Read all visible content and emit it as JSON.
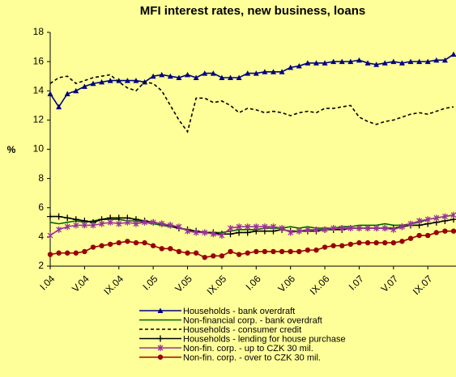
{
  "chart_data": {
    "type": "line",
    "title": "MFI interest rates, new business, loans",
    "y_label": "%",
    "categories": [
      "I.04",
      null,
      null,
      null,
      "V.04",
      null,
      null,
      null,
      "IX.04",
      null,
      null,
      null,
      "I.05",
      null,
      null,
      null,
      "V.05",
      null,
      null,
      null,
      "IX.05",
      null,
      null,
      null,
      "I.06",
      null,
      null,
      null,
      "V.06",
      null,
      null,
      null,
      "IX.06",
      null,
      null,
      null,
      "I.07",
      null,
      null,
      null,
      "V.07",
      null,
      null,
      null,
      "IX.07",
      null,
      null,
      null
    ],
    "ylim": [
      2,
      18
    ],
    "yticks": [
      2,
      4,
      6,
      8,
      10,
      12,
      14,
      16,
      18
    ],
    "grid": false,
    "series": [
      {
        "name": "Households - bank overdraft",
        "color": "#000080",
        "marker": "triangle",
        "dash": false,
        "values": [
          13.8,
          12.9,
          13.8,
          14.0,
          14.3,
          14.5,
          14.6,
          14.7,
          14.7,
          14.7,
          14.7,
          14.6,
          15.0,
          15.1,
          15.0,
          14.9,
          15.1,
          14.9,
          15.2,
          15.2,
          14.9,
          14.9,
          14.9,
          15.2,
          15.2,
          15.3,
          15.3,
          15.3,
          15.6,
          15.7,
          15.9,
          15.9,
          15.9,
          16.0,
          16.0,
          16.0,
          16.1,
          15.9,
          15.8,
          15.9,
          16.0,
          15.9,
          16.0,
          16.0,
          16.0,
          16.1,
          16.1,
          16.5
        ]
      },
      {
        "name": "Non-financial corp. - bank overdraft",
        "color": "#006400",
        "marker": "none",
        "dash": false,
        "values": [
          5.0,
          4.9,
          5.0,
          5.1,
          5.0,
          5.1,
          5.2,
          5.2,
          5.2,
          5.1,
          5.1,
          5.0,
          4.9,
          4.8,
          4.7,
          4.6,
          4.5,
          4.4,
          4.3,
          4.3,
          4.3,
          4.4,
          4.5,
          4.5,
          4.5,
          4.6,
          4.6,
          4.6,
          4.7,
          4.6,
          4.7,
          4.6,
          4.6,
          4.6,
          4.7,
          4.7,
          4.8,
          4.8,
          4.8,
          4.9,
          4.8,
          4.8,
          4.9,
          5.0,
          5.2,
          5.3,
          5.4,
          5.5
        ]
      },
      {
        "name": "Households - consumer credit",
        "color": "#000000",
        "marker": "none",
        "dash": true,
        "values": [
          14.5,
          14.9,
          15.0,
          14.5,
          14.7,
          14.9,
          15.0,
          15.1,
          14.6,
          14.2,
          14.0,
          14.6,
          14.5,
          14.0,
          13.0,
          12.0,
          11.2,
          13.5,
          13.5,
          13.2,
          13.3,
          13.0,
          12.5,
          12.8,
          12.7,
          12.5,
          12.6,
          12.5,
          12.3,
          12.5,
          12.6,
          12.5,
          12.8,
          12.8,
          12.9,
          13.0,
          12.2,
          11.9,
          11.7,
          11.9,
          12.0,
          12.2,
          12.4,
          12.5,
          12.4,
          12.6,
          12.8,
          12.9
        ]
      },
      {
        "name": "Households - lending for house purchase",
        "color": "#000000",
        "marker": "plus",
        "dash": false,
        "values": [
          5.4,
          5.4,
          5.3,
          5.2,
          5.1,
          5.0,
          5.2,
          5.3,
          5.3,
          5.3,
          5.2,
          5.1,
          5.0,
          4.9,
          4.8,
          4.6,
          4.5,
          4.4,
          4.3,
          4.3,
          4.2,
          4.2,
          4.3,
          4.3,
          4.4,
          4.4,
          4.4,
          4.5,
          4.4,
          4.4,
          4.4,
          4.4,
          4.5,
          4.5,
          4.5,
          4.6,
          4.6,
          4.6,
          4.6,
          4.6,
          4.6,
          4.7,
          4.8,
          4.8,
          4.9,
          5.0,
          5.1,
          5.2
        ]
      },
      {
        "name": "Non-fin. corp. - up to CZK 30 mil.",
        "color": "#993399",
        "marker": "star",
        "dash": false,
        "values": [
          4.1,
          4.5,
          4.7,
          4.8,
          4.8,
          4.8,
          4.9,
          5.0,
          4.9,
          5.0,
          4.9,
          5.0,
          5.0,
          4.9,
          4.8,
          4.7,
          4.4,
          4.3,
          4.3,
          4.2,
          4.1,
          4.6,
          4.7,
          4.7,
          4.7,
          4.7,
          4.7,
          4.6,
          4.3,
          4.4,
          4.5,
          4.5,
          4.5,
          4.6,
          4.6,
          4.6,
          4.6,
          4.6,
          4.6,
          4.6,
          4.5,
          4.7,
          4.9,
          5.1,
          5.2,
          5.3,
          5.4,
          5.5
        ]
      },
      {
        "name": "Non-fin. corp. - over to CZK 30 mil.",
        "color": "#990000",
        "marker": "circle",
        "dash": false,
        "values": [
          2.8,
          2.9,
          2.9,
          2.9,
          3.0,
          3.3,
          3.4,
          3.5,
          3.6,
          3.7,
          3.6,
          3.6,
          3.4,
          3.2,
          3.2,
          3.0,
          2.9,
          2.9,
          2.6,
          2.7,
          2.7,
          3.0,
          2.8,
          2.9,
          3.0,
          3.0,
          3.0,
          3.0,
          3.0,
          3.0,
          3.1,
          3.1,
          3.3,
          3.4,
          3.4,
          3.5,
          3.6,
          3.6,
          3.6,
          3.6,
          3.6,
          3.7,
          3.9,
          4.1,
          4.1,
          4.3,
          4.4,
          4.4
        ]
      }
    ]
  }
}
